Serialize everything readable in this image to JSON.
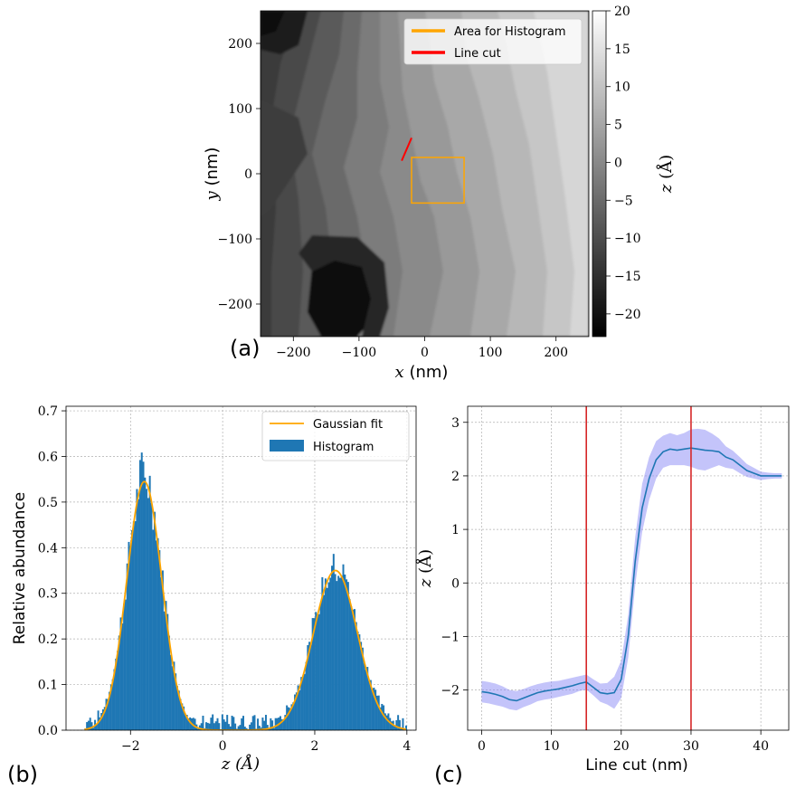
{
  "chart_data": [
    {
      "panel": "(a)",
      "type": "heatmap",
      "title": "",
      "xlabel_var": "x",
      "xlabel_unit": "(nm)",
      "ylabel_var": "y",
      "ylabel_unit": "(nm)",
      "xlim": [
        -250,
        250
      ],
      "ylim": [
        -250,
        250
      ],
      "xticks": [
        -200,
        -100,
        0,
        100,
        200
      ],
      "yticks": [
        -200,
        -100,
        0,
        100,
        200
      ],
      "xtick_labels": [
        "−200",
        "−100",
        "0",
        "100",
        "200"
      ],
      "ytick_labels": [
        "−200",
        "−100",
        "0",
        "100",
        "200"
      ],
      "colorbar": {
        "label": "z (Å)",
        "range": [
          -23,
          20
        ],
        "ticks": [
          20,
          15,
          10,
          5,
          0,
          -5,
          -10,
          -15,
          -20
        ],
        "tick_labels": [
          "20",
          "15",
          "10",
          "5",
          "0",
          "−5",
          "−10",
          "−15",
          "−20"
        ],
        "colormap": "gray"
      },
      "histogram_area": {
        "x0": -20,
        "x1": 60,
        "y0": -45,
        "y1": 25
      },
      "line_cut": {
        "x0": -35,
        "y0": 20,
        "x1": -20,
        "y1": 55
      },
      "legend": {
        "placement": "top-right",
        "entries": [
          {
            "label": "Area for Histogram",
            "color": "#ffa500"
          },
          {
            "label": "Line cut",
            "color": "#ff0000"
          }
        ]
      }
    },
    {
      "panel": "(b)",
      "type": "bar",
      "xlabel_var": "z",
      "xlabel_unit": "(Å)",
      "ylabel": "Relative abundance",
      "xlim": [
        -3.4,
        4.2
      ],
      "ylim": [
        0,
        0.71
      ],
      "xticks": [
        -2,
        0,
        2,
        4
      ],
      "xtick_labels": [
        "−2",
        "0",
        "2",
        "4"
      ],
      "yticks": [
        0.0,
        0.1,
        0.2,
        0.3,
        0.4,
        0.5,
        0.6,
        0.7
      ],
      "ytick_labels": [
        "0.0",
        "0.1",
        "0.2",
        "0.3",
        "0.4",
        "0.5",
        "0.6",
        "0.7"
      ],
      "grid": true,
      "histogram_color": "#1f77b4",
      "fit_color": "#ffa500",
      "gaussian_fit": [
        {
          "amplitude": 0.545,
          "mean": -1.7,
          "sigma": 0.38
        },
        {
          "amplitude": 0.35,
          "mean": 2.45,
          "sigma": 0.48
        }
      ],
      "legend": {
        "placement": "top-right",
        "entries": [
          {
            "label": "Gaussian fit",
            "kind": "line",
            "color": "#ffa500"
          },
          {
            "label": "Histogram",
            "kind": "patch",
            "color": "#1f77b4"
          }
        ]
      }
    },
    {
      "panel": "(c)",
      "type": "line",
      "xlabel": "Line cut (nm)",
      "ylabel_var": "z",
      "ylabel_unit": "(Å)",
      "xlim": [
        -2,
        44
      ],
      "ylim": [
        -2.75,
        3.3
      ],
      "xticks": [
        0,
        10,
        20,
        30,
        40
      ],
      "xtick_labels": [
        "0",
        "10",
        "20",
        "30",
        "40"
      ],
      "yticks": [
        -2,
        -1,
        0,
        1,
        2,
        3
      ],
      "ytick_labels": [
        "−2",
        "−1",
        "0",
        "1",
        "2",
        "3"
      ],
      "grid": true,
      "line_color": "#1f77b4",
      "band_color": "#8a8af5",
      "vlines": [
        15,
        30
      ],
      "vline_color": "#d62728",
      "x": [
        0,
        1,
        2,
        3,
        4,
        5,
        6,
        7,
        8,
        9,
        10,
        11,
        12,
        13,
        14,
        15,
        16,
        17,
        18,
        19,
        20,
        21,
        22,
        23,
        24,
        25,
        26,
        27,
        28,
        29,
        30,
        31,
        32,
        33,
        34,
        35,
        36,
        37,
        38,
        39,
        40,
        41,
        42,
        43
      ],
      "y": [
        -2.03,
        -2.05,
        -2.08,
        -2.12,
        -2.18,
        -2.2,
        -2.15,
        -2.1,
        -2.05,
        -2.02,
        -2.0,
        -1.98,
        -1.95,
        -1.92,
        -1.88,
        -1.85,
        -1.95,
        -2.05,
        -2.07,
        -2.05,
        -1.8,
        -1.0,
        0.4,
        1.4,
        1.95,
        2.3,
        2.45,
        2.5,
        2.48,
        2.5,
        2.52,
        2.5,
        2.48,
        2.47,
        2.45,
        2.35,
        2.3,
        2.2,
        2.1,
        2.05,
        2.0,
        2.0,
        2.0,
        2.0
      ],
      "band_halfwidth": [
        0.2,
        0.2,
        0.2,
        0.19,
        0.18,
        0.18,
        0.17,
        0.17,
        0.16,
        0.16,
        0.16,
        0.15,
        0.15,
        0.15,
        0.14,
        0.14,
        0.15,
        0.17,
        0.2,
        0.3,
        0.35,
        0.4,
        0.45,
        0.45,
        0.4,
        0.35,
        0.3,
        0.3,
        0.28,
        0.3,
        0.35,
        0.38,
        0.38,
        0.32,
        0.25,
        0.2,
        0.17,
        0.15,
        0.12,
        0.1,
        0.08,
        0.06,
        0.05,
        0.05
      ]
    }
  ],
  "panel_labels": {
    "a": "(a)",
    "b": "(b)",
    "c": "(c)"
  }
}
